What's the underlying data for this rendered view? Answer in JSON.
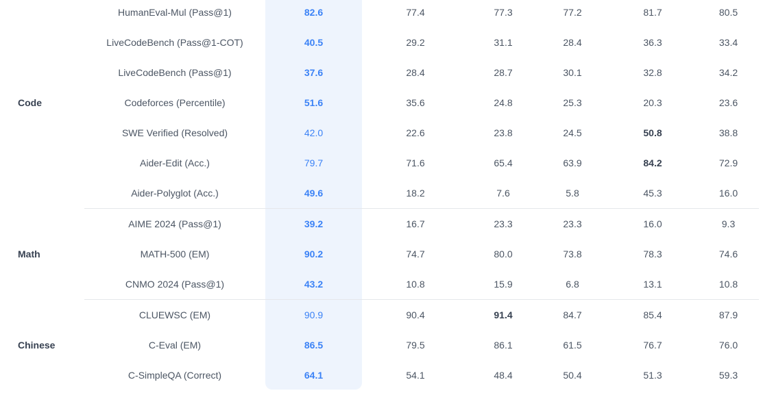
{
  "colors": {
    "highlight_background": "#eef4fd",
    "highlight_text": "#3b82f6",
    "text": "#4b5563",
    "divider": "#e5e7eb"
  },
  "groups": [
    {
      "category": "Code",
      "rows": [
        {
          "benchmark": "HumanEval-Mul (Pass@1)",
          "highlight": {
            "value": "82.6",
            "bold": true
          },
          "values": [
            {
              "v": "77.4"
            },
            {
              "v": "77.3"
            },
            {
              "v": "77.2"
            },
            {
              "v": "81.7"
            },
            {
              "v": "80.5"
            }
          ]
        },
        {
          "benchmark": "LiveCodeBench (Pass@1-COT)",
          "highlight": {
            "value": "40.5",
            "bold": true
          },
          "values": [
            {
              "v": "29.2"
            },
            {
              "v": "31.1"
            },
            {
              "v": "28.4"
            },
            {
              "v": "36.3"
            },
            {
              "v": "33.4"
            }
          ]
        },
        {
          "benchmark": "LiveCodeBench (Pass@1)",
          "highlight": {
            "value": "37.6",
            "bold": true
          },
          "values": [
            {
              "v": "28.4"
            },
            {
              "v": "28.7"
            },
            {
              "v": "30.1"
            },
            {
              "v": "32.8"
            },
            {
              "v": "34.2"
            }
          ]
        },
        {
          "benchmark": "Codeforces (Percentile)",
          "highlight": {
            "value": "51.6",
            "bold": true
          },
          "values": [
            {
              "v": "35.6"
            },
            {
              "v": "24.8"
            },
            {
              "v": "25.3"
            },
            {
              "v": "20.3"
            },
            {
              "v": "23.6"
            }
          ]
        },
        {
          "benchmark": "SWE Verified (Resolved)",
          "highlight": {
            "value": "42.0",
            "bold": false
          },
          "values": [
            {
              "v": "22.6"
            },
            {
              "v": "23.8"
            },
            {
              "v": "24.5"
            },
            {
              "v": "50.8",
              "bold": true
            },
            {
              "v": "38.8"
            }
          ]
        },
        {
          "benchmark": "Aider-Edit (Acc.)",
          "highlight": {
            "value": "79.7",
            "bold": false
          },
          "values": [
            {
              "v": "71.6"
            },
            {
              "v": "65.4"
            },
            {
              "v": "63.9"
            },
            {
              "v": "84.2",
              "bold": true
            },
            {
              "v": "72.9"
            }
          ]
        },
        {
          "benchmark": "Aider-Polyglot (Acc.)",
          "highlight": {
            "value": "49.6",
            "bold": true
          },
          "values": [
            {
              "v": "18.2"
            },
            {
              "v": "7.6"
            },
            {
              "v": "5.8"
            },
            {
              "v": "45.3"
            },
            {
              "v": "16.0"
            }
          ]
        }
      ]
    },
    {
      "category": "Math",
      "rows": [
        {
          "benchmark": "AIME 2024 (Pass@1)",
          "highlight": {
            "value": "39.2",
            "bold": true
          },
          "values": [
            {
              "v": "16.7"
            },
            {
              "v": "23.3"
            },
            {
              "v": "23.3"
            },
            {
              "v": "16.0"
            },
            {
              "v": "9.3"
            }
          ]
        },
        {
          "benchmark": "MATH-500 (EM)",
          "highlight": {
            "value": "90.2",
            "bold": true
          },
          "values": [
            {
              "v": "74.7"
            },
            {
              "v": "80.0"
            },
            {
              "v": "73.8"
            },
            {
              "v": "78.3"
            },
            {
              "v": "74.6"
            }
          ]
        },
        {
          "benchmark": "CNMO 2024 (Pass@1)",
          "highlight": {
            "value": "43.2",
            "bold": true
          },
          "values": [
            {
              "v": "10.8"
            },
            {
              "v": "15.9"
            },
            {
              "v": "6.8"
            },
            {
              "v": "13.1"
            },
            {
              "v": "10.8"
            }
          ]
        }
      ]
    },
    {
      "category": "Chinese",
      "rows": [
        {
          "benchmark": "CLUEWSC (EM)",
          "highlight": {
            "value": "90.9",
            "bold": false
          },
          "values": [
            {
              "v": "90.4"
            },
            {
              "v": "91.4",
              "bold": true
            },
            {
              "v": "84.7"
            },
            {
              "v": "85.4"
            },
            {
              "v": "87.9"
            }
          ]
        },
        {
          "benchmark": "C-Eval (EM)",
          "highlight": {
            "value": "86.5",
            "bold": true
          },
          "values": [
            {
              "v": "79.5"
            },
            {
              "v": "86.1"
            },
            {
              "v": "61.5"
            },
            {
              "v": "76.7"
            },
            {
              "v": "76.0"
            }
          ]
        },
        {
          "benchmark": "C-SimpleQA (Correct)",
          "highlight": {
            "value": "64.1",
            "bold": true
          },
          "values": [
            {
              "v": "54.1"
            },
            {
              "v": "48.4"
            },
            {
              "v": "50.4"
            },
            {
              "v": "51.3"
            },
            {
              "v": "59.3"
            }
          ]
        }
      ]
    }
  ]
}
